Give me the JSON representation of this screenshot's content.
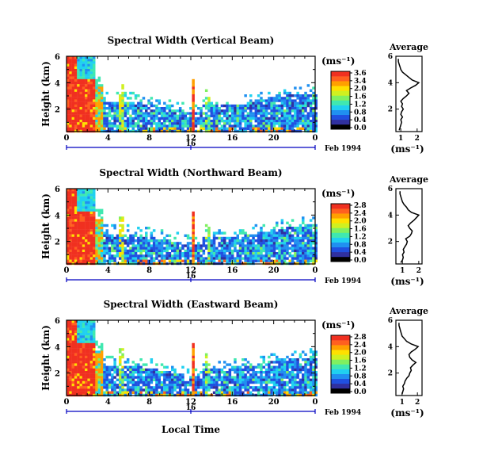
{
  "chart_data": [
    {
      "type": "heatmap",
      "title": "Spectral Width (Vertical Beam)",
      "ylabel": "Height (km)",
      "xlabel": "",
      "x_ticks": [
        "0",
        "4",
        "8",
        "12",
        "16",
        "20",
        "0"
      ],
      "y_ticks": [
        "6",
        "4",
        "2"
      ],
      "xlim": [
        0,
        24
      ],
      "ylim": [
        0.3,
        6
      ],
      "date_tick": "16",
      "date_label": "Feb 1994",
      "colorbar": {
        "unit": "(ms⁻¹)",
        "ticks": [
          "3.6",
          "3.4",
          "2.0",
          "1.6",
          "1.2",
          "0.8",
          "0.4",
          "0.0"
        ],
        "range": [
          0,
          3.6
        ]
      },
      "average": {
        "title": "Average",
        "xlabel": "(ms⁻¹)",
        "x_ticks": [
          "1",
          "2"
        ],
        "y_ticks": [
          "6",
          "4",
          "2"
        ],
        "xlim": [
          0.7,
          2.3
        ],
        "ylim": [
          0.3,
          6
        ],
        "height": [
          0.4,
          0.6,
          0.8,
          1.0,
          1.2,
          1.4,
          1.6,
          1.8,
          2.0,
          2.2,
          2.4,
          2.6,
          2.8,
          3.0,
          3.2,
          3.4,
          3.6,
          3.8,
          4.0,
          4.2,
          4.4,
          4.6,
          4.8,
          5.0,
          5.2,
          5.4,
          5.6,
          5.8
        ],
        "width": [
          0.9,
          0.95,
          1.0,
          1.05,
          1.0,
          1.1,
          1.0,
          1.05,
          1.15,
          1.05,
          1.1,
          1.0,
          1.15,
          1.35,
          1.5,
          1.35,
          1.6,
          1.9,
          2.1,
          1.7,
          1.5,
          1.3,
          1.1,
          1.0,
          0.95,
          0.9,
          0.85,
          0.85
        ]
      }
    },
    {
      "type": "heatmap",
      "title": "Spectral Width (Northward Beam)",
      "ylabel": "Height (km)",
      "xlabel": "",
      "x_ticks": [
        "0",
        "4",
        "8",
        "12",
        "16",
        "20",
        "0"
      ],
      "y_ticks": [
        "6",
        "4",
        "2"
      ],
      "xlim": [
        0,
        24
      ],
      "ylim": [
        0.3,
        6
      ],
      "date_tick": "16",
      "date_label": "Feb 1994",
      "colorbar": {
        "unit": "(ms⁻¹)",
        "ticks": [
          "2.8",
          "2.4",
          "2.0",
          "1.6",
          "1.2",
          "0.8",
          "0.4",
          "0.0"
        ],
        "range": [
          0,
          2.8
        ]
      },
      "average": {
        "title": "Average",
        "xlabel": "(ms⁻¹)",
        "x_ticks": [
          "1",
          "2"
        ],
        "y_ticks": [
          "6",
          "4",
          "2"
        ],
        "xlim": [
          0.6,
          2.2
        ],
        "ylim": [
          0.3,
          6
        ],
        "height": [
          0.4,
          0.6,
          0.8,
          1.0,
          1.2,
          1.4,
          1.6,
          1.8,
          2.0,
          2.2,
          2.4,
          2.6,
          2.8,
          3.0,
          3.2,
          3.4,
          3.6,
          3.8,
          4.0,
          4.2,
          4.4,
          4.6,
          4.8,
          5.0,
          5.2,
          5.4,
          5.6,
          5.8
        ],
        "width": [
          0.9,
          1.0,
          1.05,
          1.0,
          1.1,
          1.05,
          1.15,
          1.25,
          1.3,
          1.2,
          1.45,
          1.55,
          1.6,
          1.45,
          1.35,
          1.5,
          1.7,
          1.85,
          2.0,
          1.55,
          1.35,
          1.25,
          1.1,
          1.0,
          0.95,
          0.9,
          0.85,
          0.85
        ]
      }
    },
    {
      "type": "heatmap",
      "title": "Spectral Width (Eastward Beam)",
      "ylabel": "Height (km)",
      "xlabel": "Local Time",
      "x_ticks": [
        "0",
        "4",
        "8",
        "12",
        "16",
        "20",
        "0"
      ],
      "y_ticks": [
        "6",
        "4",
        "2"
      ],
      "xlim": [
        0,
        24
      ],
      "ylim": [
        0.3,
        6
      ],
      "date_tick": "16",
      "date_label": "Feb 1994",
      "colorbar": {
        "unit": "(ms⁻¹)",
        "ticks": [
          "2.8",
          "2.4",
          "2.0",
          "1.6",
          "1.2",
          "0.8",
          "0.4",
          "0.0"
        ],
        "range": [
          0,
          2.8
        ]
      },
      "average": {
        "title": "Average",
        "xlabel": "(ms⁻¹)",
        "x_ticks": [
          "1",
          "2"
        ],
        "y_ticks": [
          "6",
          "4",
          "2"
        ],
        "xlim": [
          0.6,
          2.3
        ],
        "ylim": [
          0.3,
          6
        ],
        "height": [
          0.4,
          0.6,
          0.8,
          1.0,
          1.2,
          1.4,
          1.6,
          1.8,
          2.0,
          2.2,
          2.4,
          2.6,
          2.8,
          3.0,
          3.2,
          3.4,
          3.6,
          3.8,
          4.0,
          4.2,
          4.4,
          4.6,
          4.8,
          5.0,
          5.2,
          5.4,
          5.6,
          5.8
        ],
        "width": [
          1.0,
          1.05,
          1.1,
          1.05,
          1.15,
          1.2,
          1.3,
          1.45,
          1.5,
          1.6,
          1.55,
          1.7,
          1.9,
          1.65,
          1.5,
          1.45,
          1.6,
          1.85,
          2.05,
          1.6,
          1.3,
          1.15,
          1.0,
          0.95,
          0.9,
          0.85,
          0.8,
          0.8
        ]
      }
    }
  ],
  "colors": {
    "scale": [
      "#000000",
      "#3030a0",
      "#2050e0",
      "#2090f0",
      "#20d0f0",
      "#40e8b0",
      "#80f060",
      "#d0f020",
      "#ffe000",
      "#ffa000",
      "#ff6020",
      "#f03020"
    ],
    "axis": "#000000",
    "date_bar": "#0000c0"
  }
}
